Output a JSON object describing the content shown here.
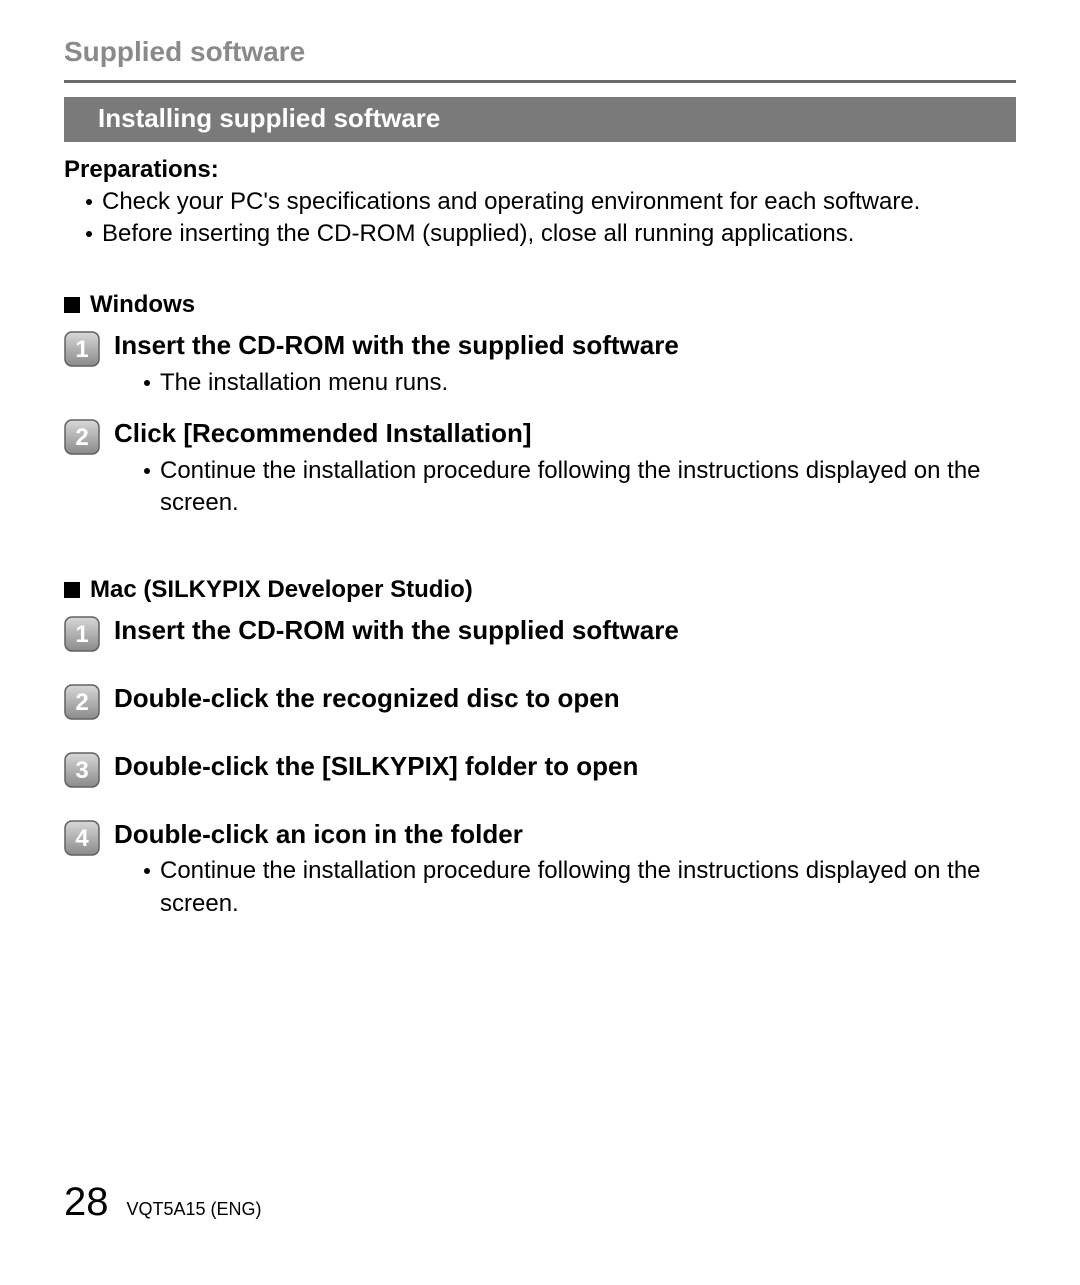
{
  "pageTitle": "Supplied software",
  "sectionBar": "Installing supplied software",
  "prepLabel": "Preparations:",
  "prepItems": [
    "Check your PC's specifications and operating environment for each software.",
    "Before inserting the CD-ROM (supplied), close all running applications."
  ],
  "windows": {
    "label": "Windows",
    "steps": [
      {
        "num": "1",
        "title": "Insert the CD-ROM with the supplied software",
        "sub": "The installation menu runs."
      },
      {
        "num": "2",
        "title": "Click [Recommended Installation]",
        "sub": "Continue the installation procedure following the instructions displayed on the screen."
      }
    ]
  },
  "mac": {
    "label": "Mac (SILKYPIX Developer Studio)",
    "steps": [
      {
        "num": "1",
        "title": "Insert the CD-ROM with the supplied software"
      },
      {
        "num": "2",
        "title": "Double-click the recognized disc to open"
      },
      {
        "num": "3",
        "title": "Double-click the [SILKYPIX] folder to open"
      },
      {
        "num": "4",
        "title": "Double-click an icon in the folder",
        "sub": "Continue the installation procedure following the instructions displayed on the screen."
      }
    ]
  },
  "pageNumber": "28",
  "docCode": "VQT5A15 (ENG)",
  "stepIcon": {
    "bg_light": "#d8d8d8",
    "bg_dark": "#8a8a8a",
    "border": "#606060",
    "text": "#ffffff"
  }
}
